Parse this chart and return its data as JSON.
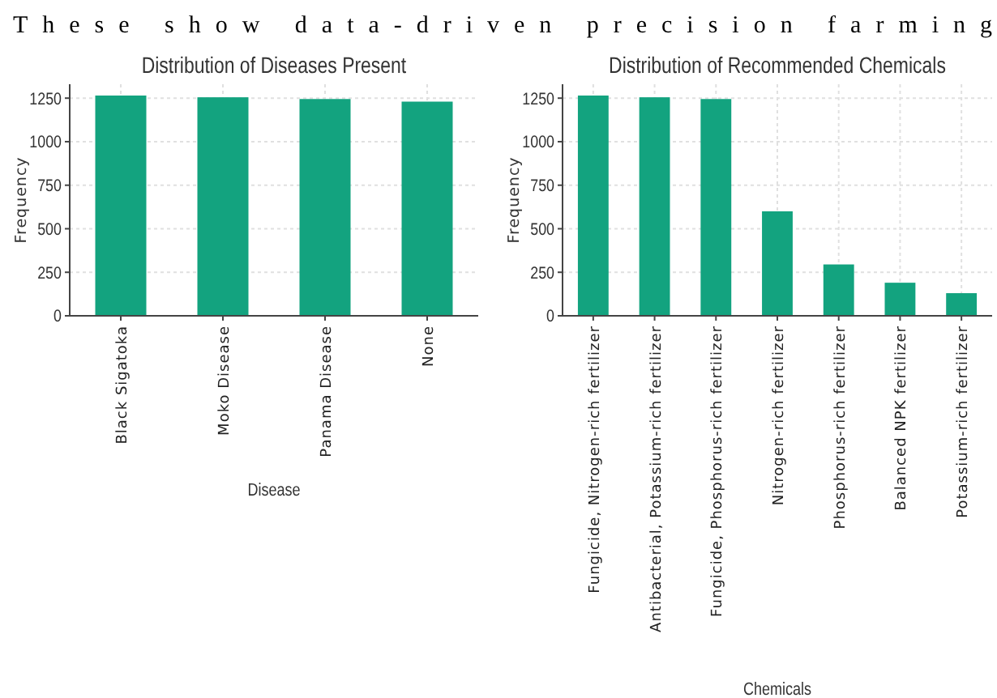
{
  "chart_data": [
    {
      "type": "bar",
      "title": "Distribution of Diseases Present",
      "xlabel": "Disease",
      "ylabel": "Frequency",
      "annotations": [
        "These show data-driven precision farming"
      ],
      "categories": [
        "Black Sigatoka",
        "Moko Disease",
        "Panama Disease",
        "None"
      ],
      "values": [
        1265,
        1255,
        1245,
        1230
      ],
      "color": "#13a37f",
      "ylim": [
        0,
        1330
      ],
      "yticks": [
        0,
        250,
        500,
        750,
        1000,
        1250
      ],
      "grid": true
    },
    {
      "type": "bar",
      "title": "Distribution of Recommended Chemicals",
      "xlabel": "Chemicals",
      "ylabel": "Frequency",
      "categories": [
        "Fungicide, Nitrogen-rich fertilizer",
        "Antibacterial, Potassium-rich fertilizer",
        "Fungicide, Phosphorus-rich fertilizer",
        "Nitrogen-rich fertilizer",
        "Phosphorus-rich fertilizer",
        "Balanced NPK fertilizer",
        "Potassium-rich fertilizer"
      ],
      "values": [
        1265,
        1255,
        1245,
        600,
        295,
        190,
        130
      ],
      "color": "#13a37f",
      "ylim": [
        0,
        1330
      ],
      "yticks": [
        0,
        250,
        500,
        750,
        1000,
        1250
      ],
      "grid": true
    }
  ]
}
